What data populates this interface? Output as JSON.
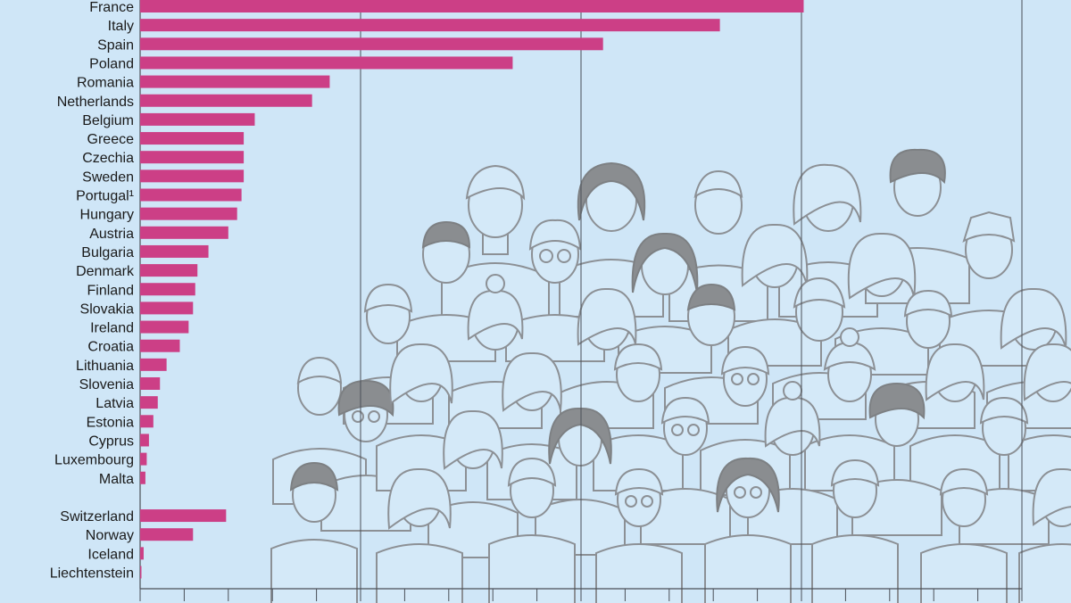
{
  "chart_data": {
    "type": "bar",
    "orientation": "horizontal",
    "title": "",
    "xlabel": "",
    "ylabel": "",
    "xlim": [
      0,
      200
    ],
    "grid": true,
    "categories": [
      "France",
      "Italy",
      "Spain",
      "Poland",
      "Romania",
      "Netherlands",
      "Belgium",
      "Greece",
      "Czechia",
      "Sweden",
      "Portugal¹",
      "Hungary",
      "Austria",
      "Bulgaria",
      "Denmark",
      "Finland",
      "Slovakia",
      "Ireland",
      "Croatia",
      "Lithuania",
      "Slovenia",
      "Latvia",
      "Estonia",
      "Cyprus",
      "Luxembourg",
      "Malta",
      "Switzerland",
      "Norway",
      "Iceland",
      "Liechtenstein"
    ],
    "values": [
      150.5,
      131.5,
      105,
      84.5,
      43,
      39,
      26,
      23.5,
      23.5,
      23.5,
      23,
      22,
      20,
      15.5,
      13,
      12.5,
      12,
      11,
      9,
      6,
      4.5,
      4,
      3,
      2,
      1.5,
      1.2,
      19.5,
      12,
      0.8,
      0.3
    ],
    "colors": {
      "bar": "#cc3f86",
      "background": "#cfe6f7"
    }
  }
}
